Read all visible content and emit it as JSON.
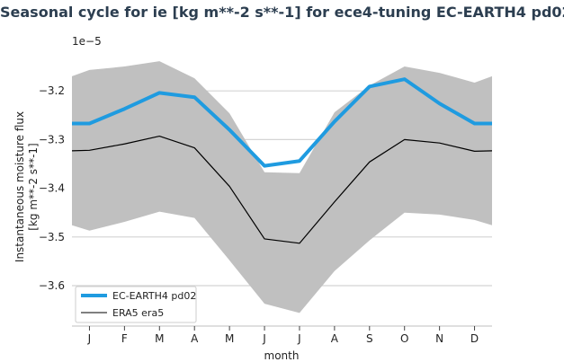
{
  "chart_data": {
    "type": "line",
    "title": "Seasonal cycle for ie [kg m**-2 s**-1] for ece4-tuning EC-EARTH4 pd02",
    "xlabel": "month",
    "ylabel_lines": [
      "Instantaneous moisture flux",
      "[kg m**-2 s**-1]"
    ],
    "y_offset_label": "1e−5",
    "categories": [
      "J",
      "F",
      "M",
      "A",
      "M",
      "J",
      "J",
      "A",
      "S",
      "O",
      "N",
      "D"
    ],
    "xlim": [
      0.5,
      12.5
    ],
    "ylim": [
      -3.683,
      -3.113
    ],
    "yticks": [
      -3.2,
      -3.3,
      -3.4,
      -3.5,
      -3.6
    ],
    "ytick_labels": [
      "−3.2",
      "−3.3",
      "−3.4",
      "−3.5",
      "−3.6"
    ],
    "grid": "horizontal",
    "legend_position": "bottom-left",
    "series": [
      {
        "name": "EC-EARTH4 pd02",
        "color": "#1f9be0",
        "values": [
          -3.267,
          -3.237,
          -3.204,
          -3.213,
          -3.28,
          -3.354,
          -3.344,
          -3.263,
          -3.191,
          -3.176,
          -3.226,
          -3.267
        ]
      },
      {
        "name": "ERA5 era5",
        "color": "#000000",
        "values": [
          -3.322,
          -3.309,
          -3.293,
          -3.317,
          -3.396,
          -3.504,
          -3.513,
          -3.428,
          -3.346,
          -3.3,
          -3.307,
          -3.324
        ]
      }
    ],
    "band": {
      "color": "#c0c0c0",
      "upper": [
        -3.157,
        -3.15,
        -3.139,
        -3.174,
        -3.246,
        -3.367,
        -3.369,
        -3.244,
        -3.189,
        -3.15,
        -3.163,
        -3.183
      ],
      "lower": [
        -3.487,
        -3.469,
        -3.448,
        -3.461,
        -3.548,
        -3.637,
        -3.656,
        -3.57,
        -3.507,
        -3.45,
        -3.454,
        -3.465
      ]
    }
  }
}
